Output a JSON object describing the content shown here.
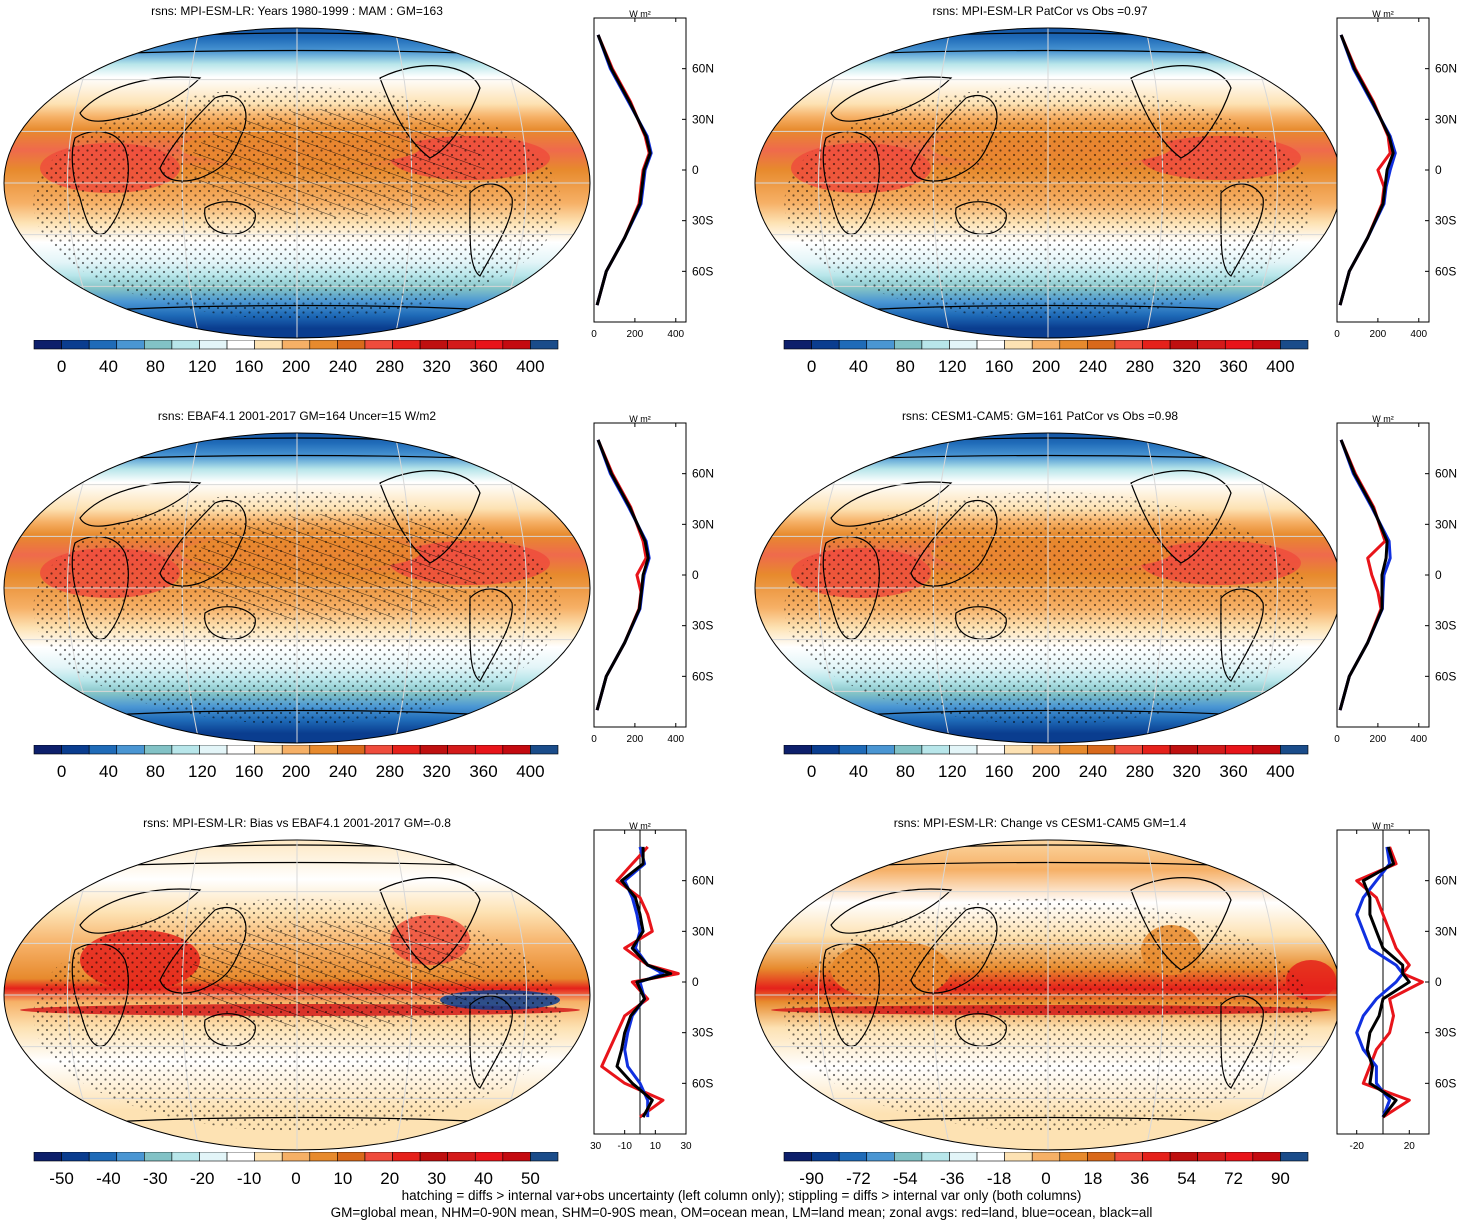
{
  "panels": [
    {
      "id": "p1",
      "title": "rsns: MPI-ESM-LR: Years 1980-1999 : MAM : GM=163",
      "field": "mean",
      "hatch": true,
      "colorbar": {
        "colors": [
          "#0d1f6b",
          "#0a3d8f",
          "#1f6bb8",
          "#4a96d3",
          "#82c2c6",
          "#b8e6ea",
          "#e3f5f8",
          "#ffffff",
          "#fde2b3",
          "#f6b066",
          "#e78a2d",
          "#d9691b",
          "#ef4c3c",
          "#e5211b",
          "#bf1010",
          "#d41a1a",
          "#e8141a",
          "#c40a10",
          "#1a4c8a"
        ],
        "labels": [
          "0",
          "40",
          "80",
          "120",
          "160",
          "200",
          "240",
          "280",
          "320",
          "360",
          "400"
        ]
      },
      "zonal": {
        "unit": "W m²",
        "lat_labels": [
          "60N",
          "30N",
          "0",
          "30S",
          "60S"
        ],
        "x_ticks": [
          "0",
          "200",
          "400"
        ],
        "xlim": [
          0,
          450
        ]
      }
    },
    {
      "id": "p2",
      "title": "rsns: MPI-ESM-LR PatCor vs Obs =0.97",
      "field": "mean",
      "hatch": false,
      "colorbar": {
        "colors": [
          "#0d1f6b",
          "#0a3d8f",
          "#1f6bb8",
          "#4a96d3",
          "#82c2c6",
          "#b8e6ea",
          "#e3f5f8",
          "#ffffff",
          "#fde2b3",
          "#f6b066",
          "#e78a2d",
          "#d9691b",
          "#ef4c3c",
          "#e5211b",
          "#bf1010",
          "#d41a1a",
          "#e8141a",
          "#c40a10",
          "#1a4c8a"
        ],
        "labels": [
          "0",
          "40",
          "80",
          "120",
          "160",
          "200",
          "240",
          "280",
          "320",
          "360",
          "400"
        ]
      },
      "zonal": {
        "unit": "W m²",
        "lat_labels": [
          "60N",
          "30N",
          "0",
          "30S",
          "60S"
        ],
        "x_ticks": [
          "0",
          "200",
          "400"
        ],
        "xlim": [
          0,
          450
        ]
      }
    },
    {
      "id": "p3",
      "title": "rsns: EBAF4.1 2001-2017 GM=164 Uncer=15 W/m2",
      "field": "mean",
      "hatch": true,
      "colorbar": {
        "colors": [
          "#0d1f6b",
          "#0a3d8f",
          "#1f6bb8",
          "#4a96d3",
          "#82c2c6",
          "#b8e6ea",
          "#e3f5f8",
          "#ffffff",
          "#fde2b3",
          "#f6b066",
          "#e78a2d",
          "#d9691b",
          "#ef4c3c",
          "#e5211b",
          "#bf1010",
          "#d41a1a",
          "#e8141a",
          "#c40a10",
          "#1a4c8a"
        ],
        "labels": [
          "0",
          "40",
          "80",
          "120",
          "160",
          "200",
          "240",
          "280",
          "320",
          "360",
          "400"
        ]
      },
      "zonal": {
        "unit": "W m²",
        "lat_labels": [
          "60N",
          "30N",
          "0",
          "30S",
          "60S"
        ],
        "x_ticks": [
          "0",
          "200",
          "400"
        ],
        "xlim": [
          0,
          450
        ]
      }
    },
    {
      "id": "p4",
      "title": "rsns: CESM1-CAM5: GM=161 PatCor vs Obs =0.98",
      "field": "mean",
      "hatch": false,
      "colorbar": {
        "colors": [
          "#0d1f6b",
          "#0a3d8f",
          "#1f6bb8",
          "#4a96d3",
          "#82c2c6",
          "#b8e6ea",
          "#e3f5f8",
          "#ffffff",
          "#fde2b3",
          "#f6b066",
          "#e78a2d",
          "#d9691b",
          "#ef4c3c",
          "#e5211b",
          "#bf1010",
          "#d41a1a",
          "#e8141a",
          "#c40a10",
          "#1a4c8a"
        ],
        "labels": [
          "0",
          "40",
          "80",
          "120",
          "160",
          "200",
          "240",
          "280",
          "320",
          "360",
          "400"
        ]
      },
      "zonal": {
        "unit": "W m²",
        "lat_labels": [
          "60N",
          "30N",
          "0",
          "30S",
          "60S"
        ],
        "x_ticks": [
          "0",
          "200",
          "400"
        ],
        "xlim": [
          0,
          450
        ]
      }
    },
    {
      "id": "p5",
      "title": "rsns: MPI-ESM-LR: Bias vs EBAF4.1 2001-2017 GM=-0.8",
      "field": "bias",
      "hatch": true,
      "colorbar": {
        "colors": [
          "#0d1f6b",
          "#0a3d8f",
          "#1f6bb8",
          "#4a96d3",
          "#82c2c6",
          "#b8e6ea",
          "#e3f5f8",
          "#ffffff",
          "#fde2b3",
          "#f6b066",
          "#e78a2d",
          "#d9691b",
          "#ef4c3c",
          "#e5211b",
          "#bf1010",
          "#d41a1a",
          "#e8141a",
          "#c40a10",
          "#1a4c8a"
        ],
        "labels": [
          "-50",
          "-40",
          "-30",
          "-20",
          "-10",
          "0",
          "10",
          "20",
          "30",
          "40",
          "50"
        ]
      },
      "zonal": {
        "unit": "W m²",
        "lat_labels": [
          "60N",
          "30N",
          "0",
          "30S",
          "60S"
        ],
        "x_ticks": [
          "-30",
          "-10",
          "10",
          "30"
        ],
        "xlim": [
          -30,
          30
        ]
      }
    },
    {
      "id": "p6",
      "title": "rsns: MPI-ESM-LR: Change vs CESM1-CAM5 GM=1.4",
      "field": "change",
      "hatch": false,
      "colorbar": {
        "colors": [
          "#0d1f6b",
          "#0a3d8f",
          "#1f6bb8",
          "#4a96d3",
          "#82c2c6",
          "#b8e6ea",
          "#e3f5f8",
          "#ffffff",
          "#fde2b3",
          "#f6b066",
          "#e78a2d",
          "#d9691b",
          "#ef4c3c",
          "#e5211b",
          "#bf1010",
          "#d41a1a",
          "#e8141a",
          "#c40a10",
          "#1a4c8a"
        ],
        "labels": [
          "-90",
          "-72",
          "-54",
          "-36",
          "-18",
          "0",
          "18",
          "36",
          "54",
          "72",
          "90"
        ]
      },
      "zonal": {
        "unit": "W m²",
        "lat_labels": [
          "60N",
          "30N",
          "0",
          "30S",
          "60S"
        ],
        "x_ticks": [
          "-20",
          "20"
        ],
        "xlim": [
          -35,
          35
        ]
      }
    }
  ],
  "footer": {
    "line1": "hatching = diffs > internal var+obs uncertainty (left column only); stippling = diffs > internal var only (both columns)",
    "line2": "GM=global mean, NHM=0-90N mean, SHM=0-90S mean, OM=ocean mean, LM=land mean; zonal avgs: red=land, blue=ocean, black=all"
  },
  "chart_data": [
    {
      "type": "heatmap",
      "title": "rsns: MPI-ESM-LR: Years 1980-1999 : MAM : GM=163",
      "colorbar_levels": [
        0,
        40,
        80,
        120,
        160,
        200,
        240,
        280,
        320,
        360,
        400
      ],
      "zonal_mean": {
        "lat": [
          80,
          60,
          40,
          20,
          10,
          0,
          -10,
          -20,
          -40,
          -60,
          -80
        ],
        "series": [
          {
            "name": "red",
            "values": [
              20,
              90,
              180,
              250,
              270,
              240,
              230,
              220,
              150,
              60,
              15
            ]
          },
          {
            "name": "blue",
            "values": [
              20,
              80,
              170,
              260,
              280,
              250,
              240,
              230,
              150,
              60,
              15
            ]
          },
          {
            "name": "black",
            "values": [
              20,
              85,
              175,
              255,
              275,
              245,
              235,
              225,
              150,
              60,
              15
            ]
          }
        ]
      }
    },
    {
      "type": "heatmap",
      "title": "rsns: MPI-ESM-LR PatCor vs Obs =0.97",
      "colorbar_levels": [
        0,
        40,
        80,
        120,
        160,
        200,
        240,
        280,
        320,
        360,
        400
      ],
      "zonal_mean": {
        "lat": [
          80,
          60,
          40,
          20,
          10,
          0,
          -10,
          -20,
          -40,
          -60,
          -80
        ],
        "series": [
          {
            "name": "red",
            "values": [
              20,
              90,
              180,
              250,
              260,
              200,
              230,
              220,
              150,
              60,
              15
            ]
          },
          {
            "name": "blue",
            "values": [
              20,
              80,
              170,
              260,
              285,
              260,
              240,
              230,
              150,
              60,
              15
            ]
          },
          {
            "name": "black",
            "values": [
              20,
              85,
              175,
              255,
              275,
              245,
              235,
              225,
              150,
              60,
              15
            ]
          }
        ]
      }
    },
    {
      "type": "heatmap",
      "title": "rsns: EBAF4.1 2001-2017 GM=164 Uncer=15 W/m2",
      "colorbar_levels": [
        0,
        40,
        80,
        120,
        160,
        200,
        240,
        280,
        320,
        360,
        400
      ],
      "zonal_mean": {
        "lat": [
          80,
          60,
          40,
          20,
          10,
          0,
          -10,
          -20,
          -40,
          -60,
          -80
        ],
        "series": [
          {
            "name": "red",
            "values": [
              20,
              90,
              180,
              240,
              255,
              210,
              230,
              220,
              150,
              60,
              15
            ]
          },
          {
            "name": "blue",
            "values": [
              20,
              80,
              170,
              255,
              270,
              245,
              235,
              225,
              150,
              60,
              15
            ]
          },
          {
            "name": "black",
            "values": [
              20,
              85,
              175,
              250,
              265,
              240,
              232,
              222,
              150,
              60,
              15
            ]
          }
        ]
      }
    },
    {
      "type": "heatmap",
      "title": "rsns: CESM1-CAM5: GM=161 PatCor vs Obs =0.98",
      "colorbar_levels": [
        0,
        40,
        80,
        120,
        160,
        200,
        240,
        280,
        320,
        360,
        400
      ],
      "zonal_mean": {
        "lat": [
          80,
          60,
          40,
          20,
          10,
          0,
          -10,
          -20,
          -40,
          -60,
          -80
        ],
        "series": [
          {
            "name": "red",
            "values": [
              20,
              90,
              180,
              235,
              150,
              170,
              200,
              215,
              150,
              60,
              15
            ]
          },
          {
            "name": "blue",
            "values": [
              20,
              80,
              170,
              255,
              260,
              230,
              225,
              222,
              150,
              60,
              15
            ]
          },
          {
            "name": "black",
            "values": [
              20,
              85,
              175,
              245,
              240,
              220,
              220,
              220,
              150,
              60,
              15
            ]
          }
        ]
      }
    },
    {
      "type": "heatmap",
      "title": "rsns: MPI-ESM-LR: Bias vs EBAF4.1 2001-2017 GM=-0.8",
      "colorbar_levels": [
        -50,
        -40,
        -30,
        -20,
        -10,
        0,
        10,
        20,
        30,
        40,
        50
      ],
      "zonal_mean": {
        "lat": [
          80,
          70,
          60,
          50,
          40,
          30,
          20,
          10,
          5,
          0,
          -10,
          -20,
          -30,
          -40,
          -50,
          -60,
          -70,
          -80
        ],
        "series": [
          {
            "name": "red",
            "values": [
              5,
              -5,
              -15,
              0,
              5,
              8,
              -10,
              5,
              25,
              -5,
              5,
              -10,
              -15,
              -20,
              -25,
              -10,
              15,
              0
            ]
          },
          {
            "name": "blue",
            "values": [
              0,
              3,
              -10,
              -5,
              -2,
              0,
              -3,
              5,
              15,
              0,
              3,
              -5,
              -8,
              -10,
              -8,
              0,
              5,
              5
            ]
          },
          {
            "name": "black",
            "values": [
              2,
              2,
              -12,
              -3,
              0,
              2,
              -5,
              5,
              20,
              -2,
              3,
              -6,
              -10,
              -12,
              -15,
              -5,
              8,
              2
            ]
          }
        ]
      }
    },
    {
      "type": "heatmap",
      "title": "rsns: MPI-ESM-LR: Change vs CESM1-CAM5 GM=1.4",
      "colorbar_levels": [
        -90,
        -72,
        -54,
        -36,
        -18,
        0,
        18,
        36,
        54,
        72,
        90
      ],
      "zonal_mean": {
        "lat": [
          80,
          70,
          60,
          50,
          40,
          30,
          20,
          10,
          5,
          0,
          -10,
          -20,
          -30,
          -40,
          -50,
          -60,
          -70,
          -80
        ],
        "series": [
          {
            "name": "red",
            "values": [
              5,
              10,
              -20,
              -5,
              0,
              5,
              10,
              20,
              15,
              30,
              5,
              8,
              5,
              -5,
              -10,
              -15,
              20,
              0
            ]
          },
          {
            "name": "blue",
            "values": [
              3,
              5,
              -5,
              -15,
              -20,
              -15,
              -10,
              10,
              15,
              10,
              -5,
              -15,
              -20,
              -15,
              -5,
              -5,
              5,
              0
            ]
          },
          {
            "name": "black",
            "values": [
              4,
              8,
              -15,
              -10,
              -10,
              -5,
              0,
              15,
              15,
              20,
              0,
              -3,
              -10,
              -12,
              -8,
              -10,
              10,
              0
            ]
          }
        ]
      }
    }
  ]
}
